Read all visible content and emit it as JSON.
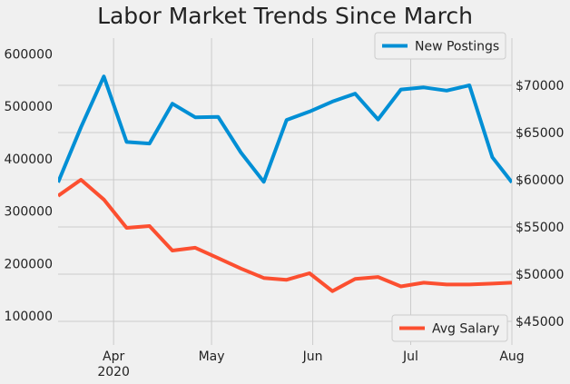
{
  "chart_data": {
    "type": "line",
    "title": "Labor Market Trends Since March",
    "x_ticks": [
      {
        "label": "Apr",
        "sub": "2020",
        "x": "2020-04-01"
      },
      {
        "label": "May",
        "sub": "",
        "x": "2020-05-01"
      },
      {
        "label": "Jun",
        "sub": "",
        "x": "2020-06-01"
      },
      {
        "label": "Jul",
        "sub": "",
        "x": "2020-07-01"
      },
      {
        "label": "Aug",
        "sub": "",
        "x": "2020-08-01"
      }
    ],
    "xlim": [
      "2020-03-15",
      "2020-08-01"
    ],
    "x": [
      "2020-03-15",
      "2020-03-22",
      "2020-03-29",
      "2020-04-05",
      "2020-04-12",
      "2020-04-19",
      "2020-04-26",
      "2020-05-03",
      "2020-05-10",
      "2020-05-17",
      "2020-05-24",
      "2020-05-31",
      "2020-06-07",
      "2020-06-14",
      "2020-06-21",
      "2020-06-28",
      "2020-07-05",
      "2020-07-12",
      "2020-07-19",
      "2020-07-26",
      "2020-08-01"
    ],
    "left_axis": {
      "ylim": [
        45000,
        630000
      ],
      "ticks": [
        100000,
        200000,
        300000,
        400000,
        500000,
        600000
      ],
      "tick_labels": [
        "100000",
        "200000",
        "300000",
        "400000",
        "500000",
        "600000"
      ]
    },
    "right_axis": {
      "ylim": [
        42500,
        75000
      ],
      "ticks": [
        45000,
        50000,
        55000,
        60000,
        65000,
        70000
      ],
      "tick_labels": [
        "$45000",
        "$50000",
        "$55000",
        "$60000",
        "$65000",
        "$70000"
      ]
    },
    "grid": true,
    "series": [
      {
        "name": "New Postings",
        "axis": "left",
        "color": "#008fd5",
        "values": [
          355000,
          460000,
          557000,
          432000,
          429000,
          505000,
          479000,
          480000,
          412000,
          356000,
          474000,
          490000,
          509000,
          524000,
          475000,
          532000,
          536000,
          530000,
          540000,
          403000,
          355000
        ]
      },
      {
        "name": "Avg Salary",
        "axis": "right",
        "color": "#fc4f30",
        "values": [
          58300,
          60000,
          57900,
          54900,
          55100,
          52500,
          52800,
          51700,
          50600,
          49600,
          49400,
          50100,
          48200,
          49500,
          49700,
          48700,
          49100,
          48900,
          48900,
          49000,
          49100
        ]
      }
    ],
    "legends": [
      {
        "series": "New Postings",
        "placement": "top-right"
      },
      {
        "series": "Avg Salary",
        "placement": "bottom-right"
      }
    ]
  }
}
